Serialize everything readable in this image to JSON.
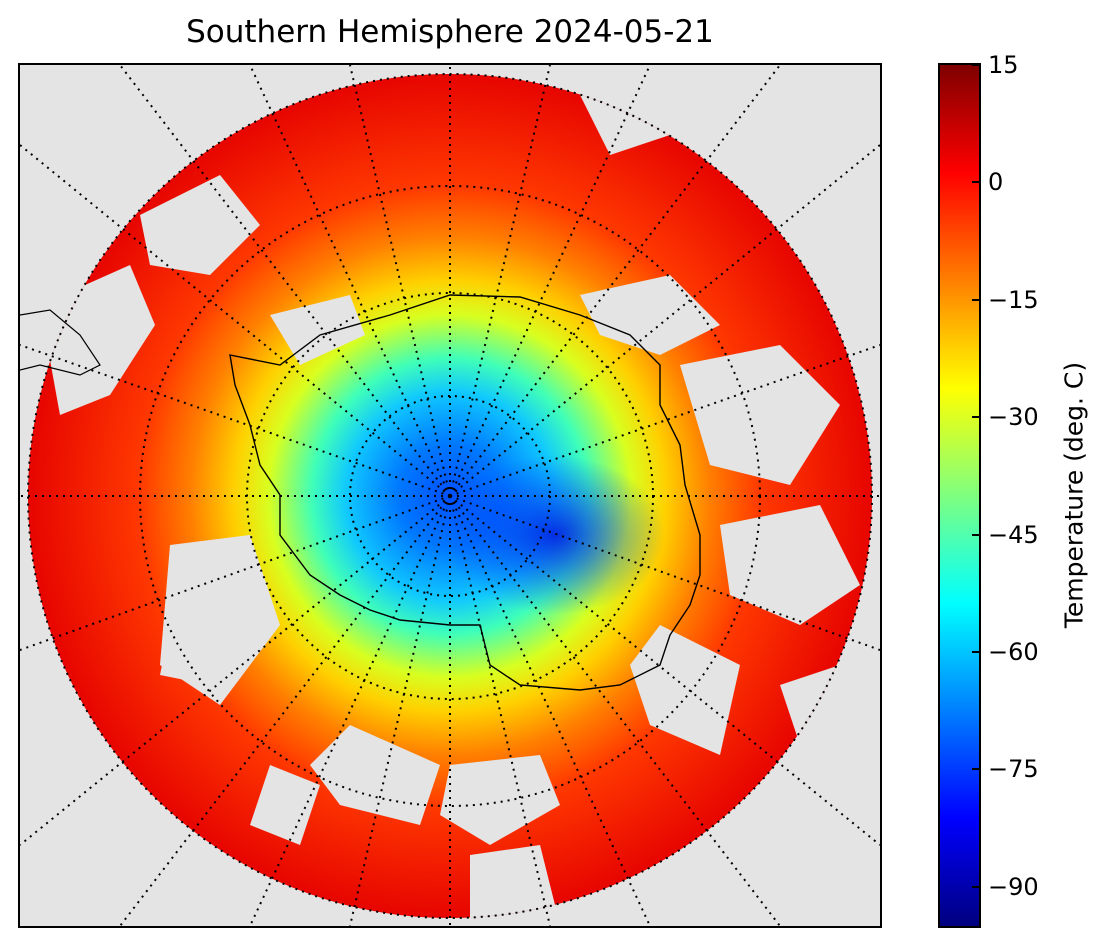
{
  "title": "Southern Hemisphere 2024-05-21",
  "colorbar": {
    "label": "Temperature (deg. C)",
    "min": -95,
    "max": 15,
    "ticks": [
      "15",
      "0",
      "−15",
      "−30",
      "−45",
      "−60",
      "−75",
      "−90"
    ],
    "tick_values": [
      15,
      0,
      -15,
      -30,
      -45,
      -60,
      -75,
      -90
    ],
    "colormap": "jet",
    "colors": [
      "#00007f",
      "#0000ff",
      "#007fff",
      "#00ffff",
      "#7fff7f",
      "#ffff00",
      "#ff7f00",
      "#ff0000",
      "#7f0000"
    ]
  },
  "map": {
    "projection": "south polar stereographic",
    "background_color": "#e4e4e4",
    "graticule": "dotted black meridians and parallels",
    "coastlines": "thin black"
  }
}
